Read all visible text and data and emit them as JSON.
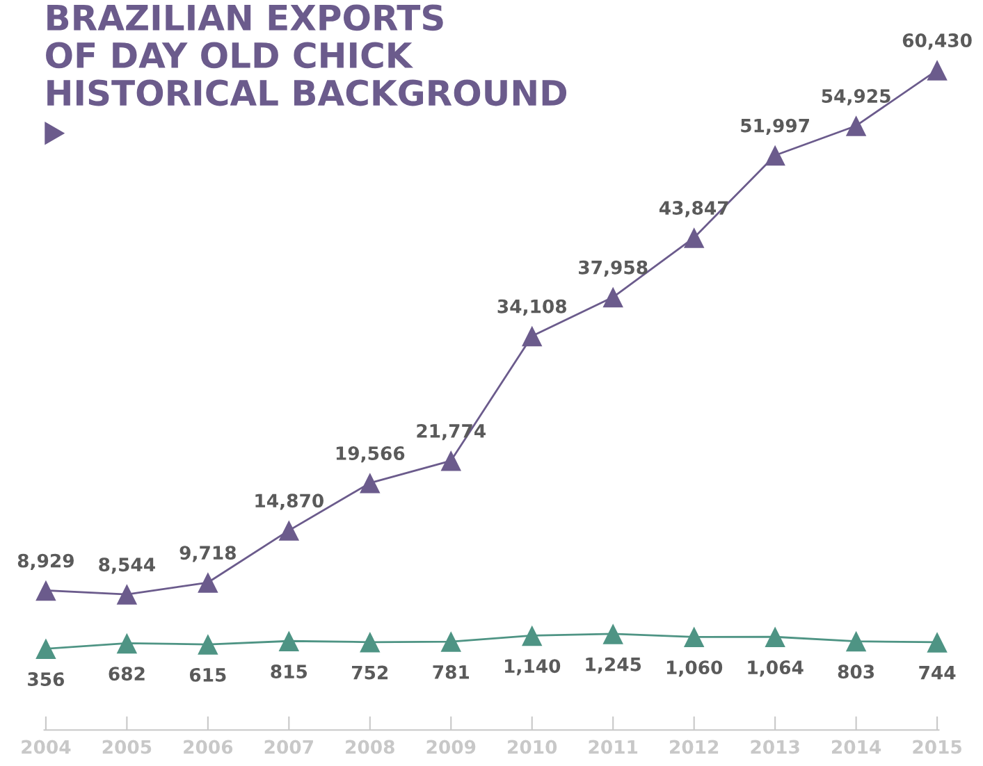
{
  "chart_data": [
    {
      "type": "line",
      "title": "BRAZILIAN EXPORTS\nOF DAY OLD CHICK\nHISTORICAL BACKGROUND",
      "categories": [
        "2004",
        "2005",
        "2006",
        "2007",
        "2008",
        "2009",
        "2010",
        "2011",
        "2012",
        "2013",
        "2014",
        "2015"
      ],
      "series": [
        {
          "color": "#6b5b8c",
          "values": [
            8929,
            8544,
            9718,
            14870,
            19566,
            21774,
            34108,
            37958,
            43847,
            51997,
            54925,
            60430
          ],
          "value_labels": [
            "8,929",
            "8,544",
            "9,718",
            "14,870",
            "19,566",
            "21,774",
            "34,108",
            "37,958",
            "43,847",
            "51,997",
            "54,925",
            "60,430"
          ]
        }
      ],
      "tick_labels": false,
      "marker": "triangle",
      "line_style": "solid"
    },
    {
      "type": "line",
      "categories": [
        "2004",
        "2005",
        "2006",
        "2007",
        "2008",
        "2009",
        "2010",
        "2011",
        "2012",
        "2013",
        "2014",
        "2015"
      ],
      "series": [
        {
          "color": "#4e9484",
          "values": [
            356,
            682,
            615,
            815,
            752,
            781,
            1140,
            1245,
            1060,
            1064,
            803,
            744
          ],
          "value_labels": [
            "356",
            "682",
            "615",
            "815",
            "752",
            "781",
            "1,140",
            "1,245",
            "1,060",
            "1,064",
            "803",
            "744"
          ]
        }
      ],
      "tick_labels": "x",
      "marker": "triangle",
      "line_style": "solid"
    }
  ]
}
